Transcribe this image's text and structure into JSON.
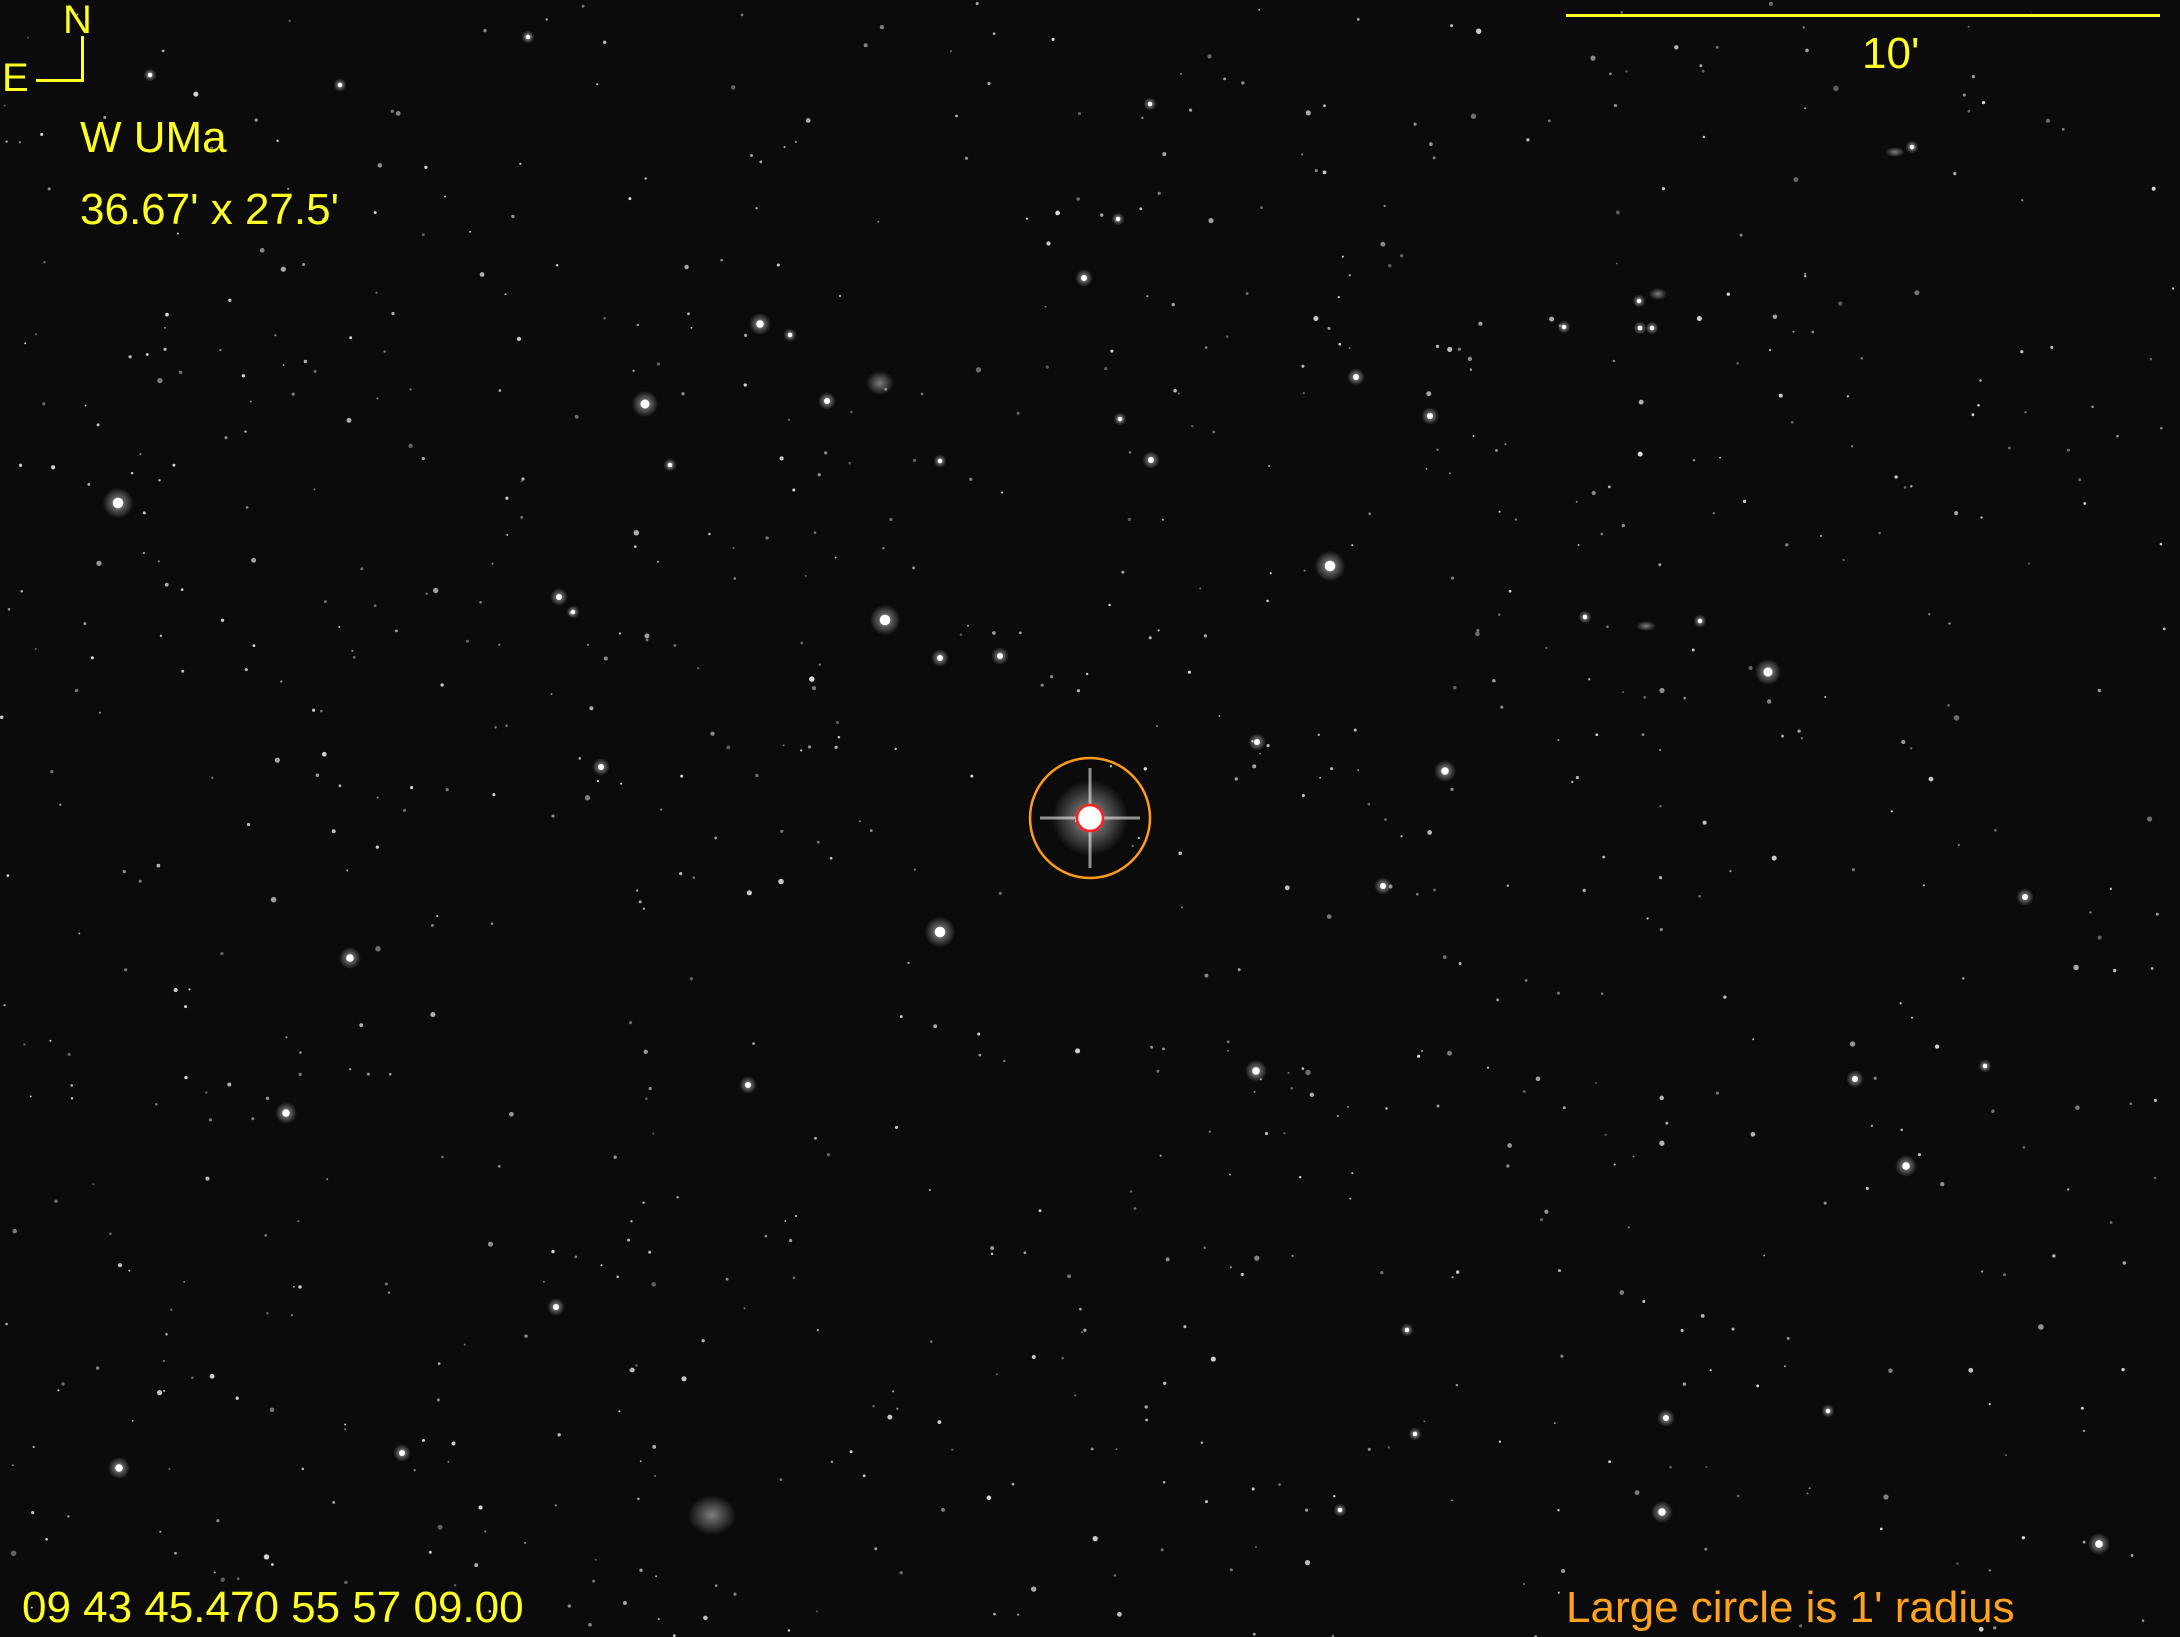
{
  "image": {
    "target_name": "W UMa",
    "field_size": "36.67' x 27.5'",
    "coordinates": "09 43 45.470  55 57 09.00",
    "compass": {
      "north": "N",
      "east": "E"
    },
    "scale_bar": {
      "label": "10'"
    },
    "legend": "Large circle is 1' radius",
    "colors": {
      "overlay_text": "#ffff22",
      "legend_text": "#ffa31f",
      "target_circle": "#ff9a1a",
      "inner_circle": "#ff2020",
      "sky": "#0b0b0b"
    }
  }
}
